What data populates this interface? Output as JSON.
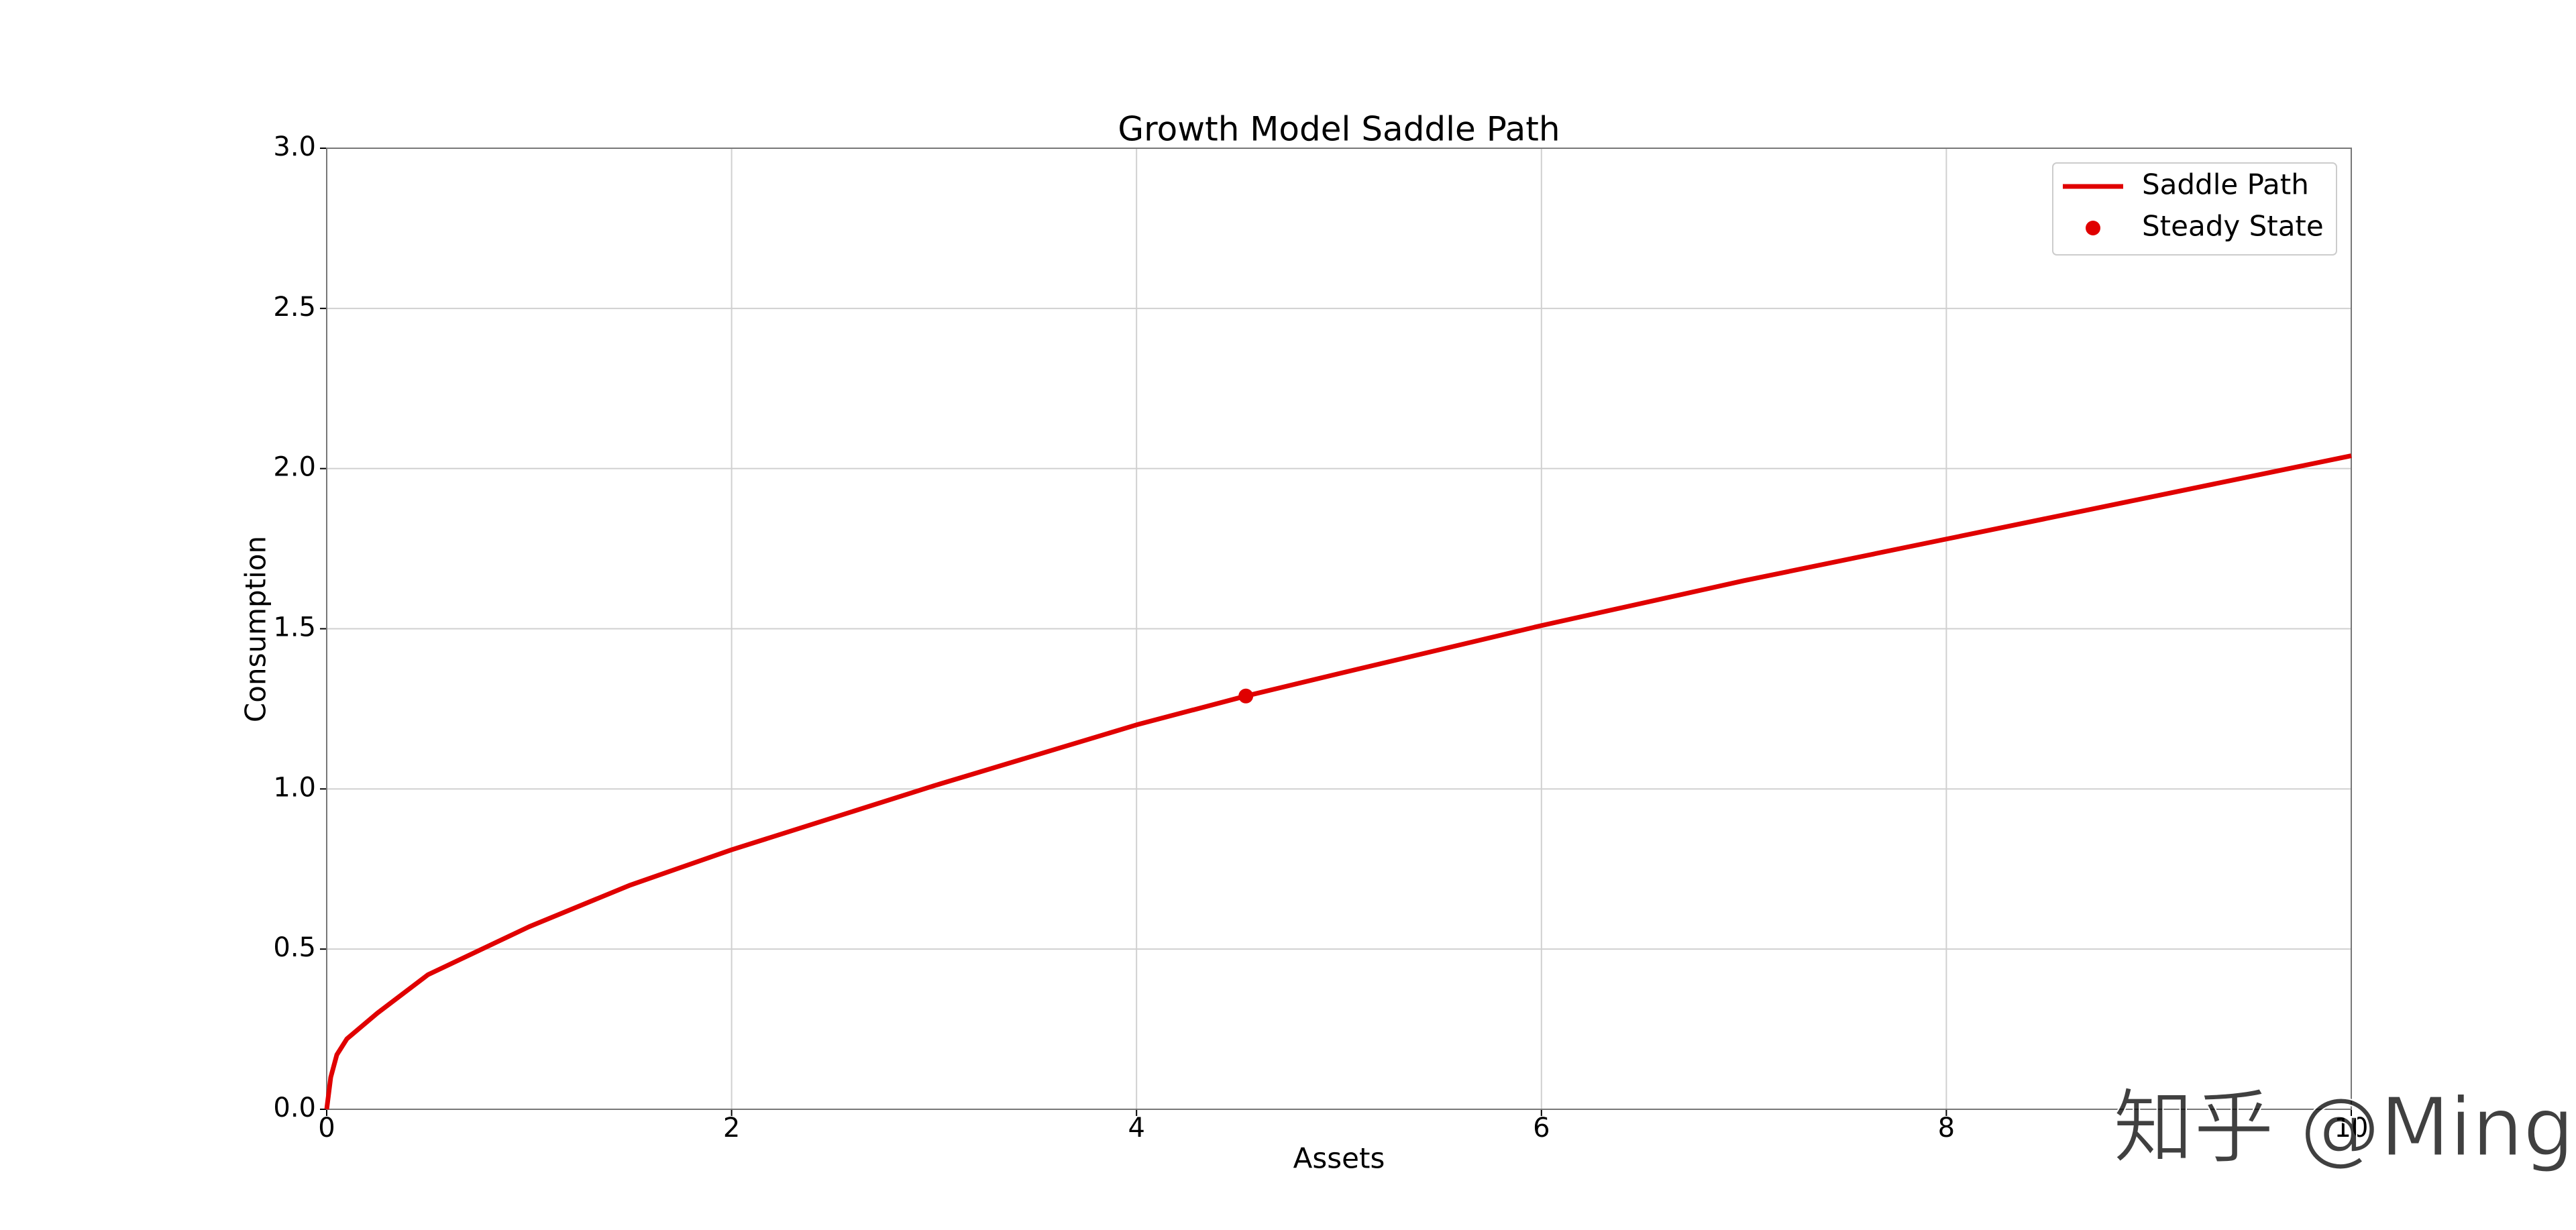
{
  "chart_data": {
    "type": "line",
    "title": "Growth Model Saddle Path",
    "x_label": "Assets",
    "y_label": "Consumption",
    "xlim": [
      0,
      10
    ],
    "ylim": [
      0,
      3
    ],
    "xticks": [
      0,
      2,
      4,
      6,
      8,
      10
    ],
    "yticks": [
      {
        "value": 0,
        "label": "0.0"
      },
      0.5,
      {
        "value": 1,
        "label": "1.0"
      },
      1.5,
      {
        "value": 2,
        "label": "2.0"
      },
      2.5,
      {
        "value": 3,
        "label": "3.0"
      }
    ],
    "grid": true,
    "legend": "upper right",
    "series": [
      {
        "name": "Saddle Path",
        "color": "#e00000",
        "x": [
          0,
          0.02,
          0.05,
          0.1,
          0.25,
          0.5,
          1,
          1.5,
          2,
          3,
          4,
          4.54,
          5,
          6,
          7,
          8,
          9,
          10
        ],
        "values": [
          0,
          0.1,
          0.17,
          0.22,
          0.3,
          0.42,
          0.57,
          0.7,
          0.81,
          1.01,
          1.2,
          1.29,
          1.36,
          1.51,
          1.65,
          1.78,
          1.91,
          2.04
        ]
      },
      {
        "name": "Steady State",
        "color": "#e00000",
        "marker": "o",
        "x": [
          4.54
        ],
        "values": [
          1.29
        ]
      }
    ],
    "watermark": "知乎 @Ming"
  }
}
